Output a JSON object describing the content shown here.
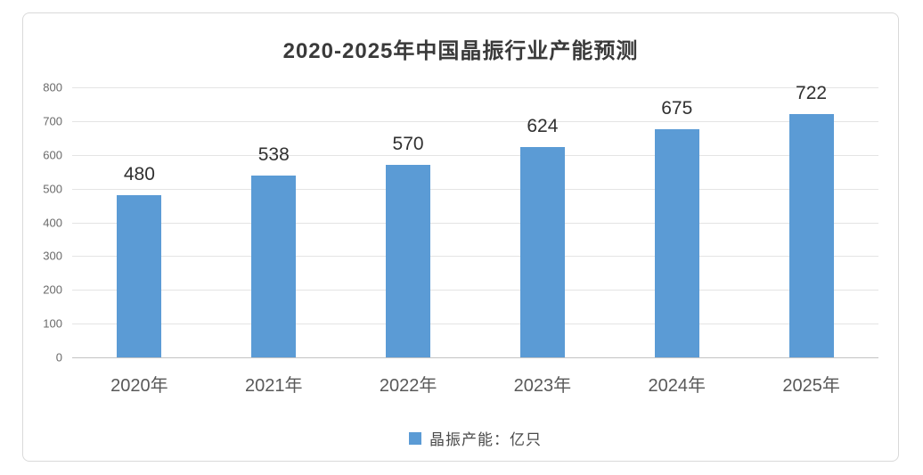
{
  "chart_data": {
    "type": "bar",
    "title": "2020-2025年中国晶振行业产能预测",
    "categories": [
      "2020年",
      "2021年",
      "2022年",
      "2023年",
      "2024年",
      "2025年"
    ],
    "values": [
      480,
      538,
      570,
      624,
      675,
      722
    ],
    "series": [
      {
        "name": "晶振产能：亿只",
        "values": [
          480,
          538,
          570,
          624,
          675,
          722
        ]
      }
    ],
    "legend": [
      "晶振产能：亿只"
    ],
    "legend_position": "bottom-center",
    "xlabel": "",
    "ylabel": "",
    "ylim": [
      0,
      800
    ],
    "yticks": [
      0,
      100,
      200,
      300,
      400,
      500,
      600,
      700,
      800
    ],
    "grid": true,
    "data_labels": true,
    "bar_color": "#5B9BD5"
  },
  "colors": {
    "bar": "#5B9BD5",
    "gridline": "#e4e4e4",
    "axis_line": "#c3c3c3",
    "title_text": "#3a3a3a",
    "value_label_text": "#303030",
    "tick_text": "#595959",
    "card_border": "#d9d9d9"
  }
}
